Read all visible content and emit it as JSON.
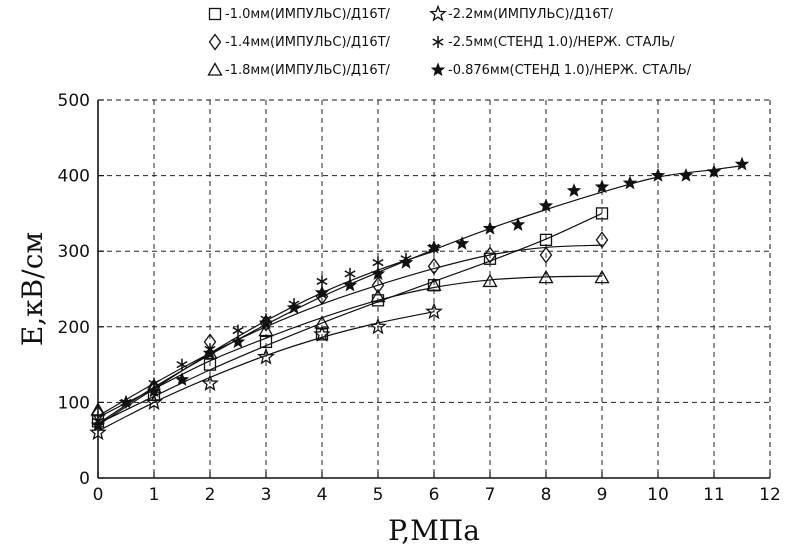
{
  "chart_data": {
    "type": "scatter",
    "xlabel": "P,МПа",
    "ylabel": "E,кВ/см",
    "xlim": [
      0,
      12
    ],
    "ylim": [
      0,
      500
    ],
    "xticks": [
      "0",
      "1",
      "2",
      "3",
      "4",
      "5",
      "6",
      "7",
      "8",
      "9",
      "10",
      "11",
      "12"
    ],
    "yticks": [
      "0",
      "100",
      "200",
      "300",
      "400",
      "500"
    ],
    "grid": "dashed",
    "legend_position": "top",
    "series": [
      {
        "name": "-1.0мм(ИМПУЛЬС)/Д16Т/",
        "marker": "square-open",
        "x": [
          0,
          1,
          2,
          3,
          4,
          5,
          6,
          7,
          8,
          9
        ],
        "y": [
          75,
          110,
          150,
          180,
          190,
          235,
          255,
          290,
          315,
          350
        ],
        "curve_x": [
          0,
          1,
          2,
          3,
          4,
          5,
          6,
          7,
          8,
          9
        ],
        "curve_y": [
          72,
          108,
          143,
          175,
          205,
          233,
          260,
          287,
          316,
          350
        ]
      },
      {
        "name": "-1.4мм(ИМПУЛЬС)/Д16Т/",
        "marker": "diamond-open",
        "x": [
          0,
          1,
          2,
          3,
          4,
          5,
          6,
          7,
          8,
          9
        ],
        "y": [
          85,
          120,
          180,
          205,
          240,
          255,
          280,
          295,
          295,
          315
        ],
        "curve_x": [
          0,
          1,
          2,
          3,
          4,
          5,
          6,
          7,
          8,
          9
        ],
        "curve_y": [
          82,
          125,
          165,
          200,
          230,
          255,
          277,
          295,
          305,
          308
        ]
      },
      {
        "name": "-1.8мм(ИМПУЛЬС)/Д16Т/",
        "marker": "triangle-open",
        "x": [
          0,
          1,
          2,
          3,
          4,
          5,
          6,
          7,
          8,
          9
        ],
        "y": [
          90,
          120,
          165,
          195,
          205,
          240,
          255,
          260,
          265,
          265
        ],
        "curve_x": [
          0,
          1,
          2,
          3,
          4,
          5,
          6,
          7,
          8,
          9
        ],
        "curve_y": [
          80,
          118,
          155,
          185,
          212,
          235,
          252,
          262,
          266,
          267
        ]
      },
      {
        "name": "-2.2мм(ИМПУЛЬС)/Д16Т/",
        "marker": "star-open",
        "x": [
          0,
          1,
          2,
          3,
          4,
          5,
          6
        ],
        "y": [
          60,
          100,
          125,
          160,
          190,
          200,
          220
        ],
        "curve_x": [
          0,
          1,
          2,
          3,
          4,
          5,
          6
        ],
        "curve_y": [
          62,
          100,
          133,
          162,
          186,
          205,
          220
        ]
      },
      {
        "name": "-2.5мм(СТЕНД 1.0)/НЕРЖ. СТАЛЬ/",
        "marker": "asterisk",
        "x": [
          0,
          0.5,
          1,
          1.5,
          2,
          2.5,
          3,
          3.5,
          4,
          4.5,
          5,
          5.5,
          6
        ],
        "y": [
          75,
          100,
          125,
          150,
          170,
          195,
          210,
          230,
          260,
          270,
          285,
          290,
          305
        ],
        "curve_x": [
          0,
          1,
          2,
          3,
          4,
          5,
          6
        ],
        "curve_y": [
          70,
          118,
          165,
          208,
          245,
          275,
          300
        ]
      },
      {
        "name": "-0.876мм(СТЕНД 1.0)/НЕРЖ. СТАЛЬ/",
        "marker": "star-filled",
        "x": [
          0,
          0.5,
          1,
          1.5,
          2,
          2.5,
          3,
          3.5,
          4,
          4.5,
          5,
          5.5,
          6,
          6.5,
          7,
          7.5,
          8,
          8.5,
          9,
          9.5,
          10,
          10.5,
          11,
          11.5
        ],
        "y": [
          70,
          100,
          115,
          130,
          165,
          180,
          205,
          225,
          245,
          255,
          270,
          285,
          305,
          310,
          330,
          335,
          360,
          380,
          385,
          390,
          400,
          400,
          405,
          415
        ],
        "curve_x": [
          0,
          1,
          2,
          3,
          4,
          5,
          6,
          7,
          8,
          9,
          10,
          11,
          11.5
        ],
        "curve_y": [
          72,
          120,
          163,
          203,
          240,
          272,
          302,
          330,
          355,
          378,
          398,
          408,
          413
        ]
      }
    ]
  }
}
